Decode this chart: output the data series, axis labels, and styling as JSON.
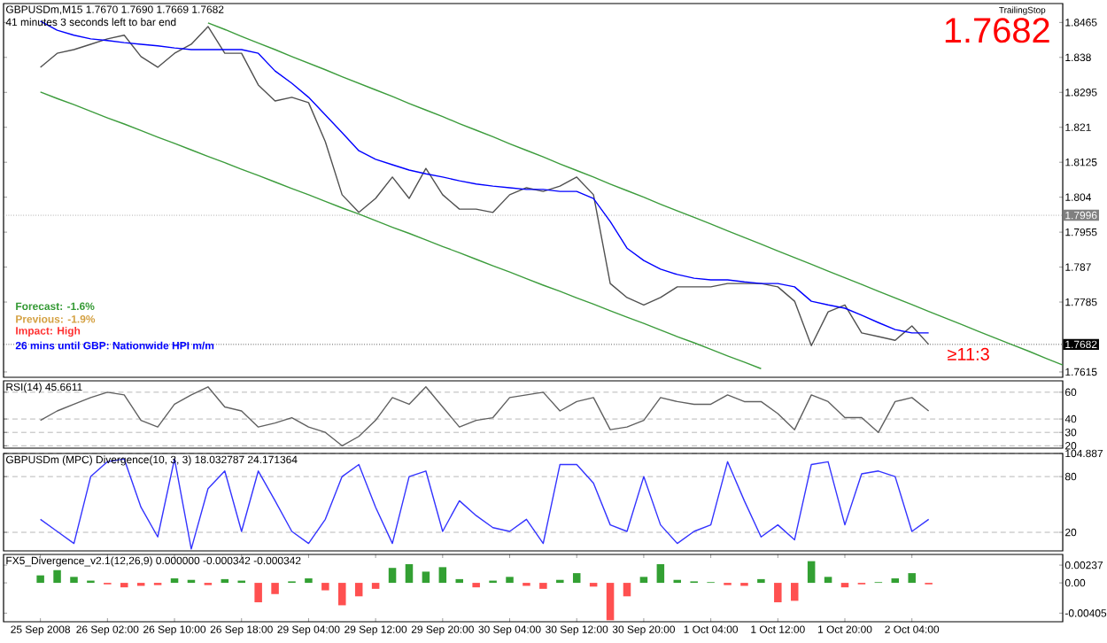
{
  "chart_data": [
    {
      "type": "line",
      "title": "GBPUSDm,M15  1.7670 1.7690 1.7669 1.7682",
      "subtitle": "41 minutes 3 seconds left to bar end",
      "annotations": [
        "TrailingStop",
        "1.7682",
        "Forecast: -1.6%",
        "Previous: -1.9%",
        "Impact: High",
        "26 mins until GBP: Nationwide HPI m/m",
        "≥11:3"
      ],
      "categories": [
        null,
        null,
        null,
        null,
        null,
        null,
        null,
        null,
        null,
        null,
        null,
        null,
        null,
        null,
        null,
        null,
        null,
        null,
        null,
        null,
        null,
        null,
        null,
        null,
        null,
        null,
        null,
        null,
        null,
        null,
        null,
        null,
        null,
        null,
        null,
        null,
        null,
        null,
        null,
        null,
        null,
        null,
        null,
        null,
        null,
        null,
        null,
        null,
        null,
        null,
        null,
        null,
        null,
        null,
        null,
        null,
        null,
        null,
        null,
        null,
        null,
        null
      ],
      "tick_labels": "y",
      "ylim": [
        1.7602,
        1.8511
      ],
      "yticks": [
        1.8465,
        1.838,
        1.8295,
        1.821,
        1.8125,
        1.804,
        1.7955,
        1.787,
        1.7785,
        1.7615
      ],
      "ref_lines": [
        {
          "axis": "y",
          "value": 1.7996,
          "label": "1.7996",
          "color": "#808080",
          "line_style": "dotted"
        },
        {
          "axis": "y",
          "value": 1.7682,
          "label": "1.7682",
          "color": "#000000",
          "line_style": "dotted"
        }
      ],
      "series": [
        {
          "color": "#3c9c3c",
          "values": [
            null,
            null,
            null,
            null,
            null,
            null,
            null,
            null,
            null,
            null,
            1.8464,
            1.8448,
            1.8431,
            1.8415,
            1.8399,
            1.8382,
            1.8366,
            1.835,
            1.8333,
            1.8317,
            1.8301,
            1.8285,
            1.8268,
            1.8252,
            1.8236,
            1.8219,
            1.8203,
            1.8187,
            1.817,
            1.8154,
            1.8138,
            1.8121,
            1.8105,
            1.8089,
            1.8072,
            1.8056,
            1.804,
            1.8023,
            1.8007,
            1.7991,
            1.7975,
            1.7958,
            1.7942,
            1.7926,
            1.7909,
            1.7893,
            1.7877,
            1.786,
            1.7844,
            1.7828,
            1.7811,
            1.7795,
            1.7779,
            1.7762,
            1.7746,
            1.773,
            1.7713,
            1.7697,
            1.7681,
            1.7665,
            1.7648,
            1.7632
          ]
        },
        {
          "color": "#3c9c3c",
          "values": [
            1.8296,
            1.828,
            1.8265,
            1.8249,
            1.8233,
            1.8218,
            1.8202,
            1.8186,
            1.8171,
            1.8155,
            1.8139,
            1.8124,
            1.8108,
            1.8093,
            1.8077,
            1.8061,
            1.8046,
            1.803,
            1.8014,
            1.7999,
            1.7983,
            1.7967,
            1.7952,
            1.7936,
            1.792,
            1.7905,
            1.7889,
            1.7873,
            1.7858,
            1.7842,
            1.7826,
            1.7811,
            1.7795,
            1.778,
            1.7764,
            1.7748,
            1.7733,
            1.7717,
            1.7701,
            1.7686,
            1.767,
            1.7654,
            1.7639,
            1.7623,
            null,
            null,
            null,
            null,
            null,
            null,
            null,
            null,
            null,
            null,
            null,
            null,
            null,
            null,
            null,
            null,
            null,
            null
          ]
        },
        {
          "color": "#505050",
          "values": [
            1.8356,
            1.839,
            1.8399,
            1.8412,
            1.8425,
            1.8434,
            1.8382,
            1.8356,
            1.839,
            1.8412,
            1.8455,
            1.839,
            1.839,
            1.8313,
            1.8274,
            1.8283,
            1.827,
            1.8175,
            1.8046,
            1.8003,
            1.8037,
            1.8089,
            1.8037,
            1.811,
            1.8046,
            1.8011,
            1.8011,
            1.8003,
            1.8046,
            1.8063,
            1.8054,
            1.8067,
            1.8089,
            1.8046,
            1.783,
            1.7796,
            1.7778,
            1.7796,
            1.7822,
            1.7822,
            1.7822,
            1.783,
            1.783,
            1.783,
            1.7822,
            1.7787,
            1.7679,
            1.7761,
            1.7778,
            1.771,
            1.7701,
            1.7692,
            1.7727,
            1.7682,
            null,
            null,
            null,
            null,
            null,
            null,
            null,
            null
          ]
        },
        {
          "color": "#0000ff",
          "values": [
            1.8468,
            1.8446,
            1.8434,
            1.8425,
            1.8421,
            1.8416,
            1.8412,
            1.8408,
            1.8403,
            1.8399,
            1.8399,
            1.8399,
            1.8399,
            1.839,
            1.8347,
            1.8317,
            1.8283,
            1.824,
            1.8197,
            1.8153,
            1.8132,
            1.8119,
            1.8106,
            1.8097,
            1.8089,
            1.808,
            1.8072,
            1.8067,
            1.8063,
            1.8059,
            1.8059,
            1.8054,
            1.8054,
            1.8037,
            1.7981,
            1.7916,
            1.7886,
            1.7865,
            1.7852,
            1.7843,
            1.7839,
            1.7839,
            1.7834,
            1.783,
            1.783,
            1.7822,
            1.7787,
            1.7778,
            1.777,
            1.7753,
            1.7735,
            1.7718,
            1.771,
            1.771,
            null,
            null,
            null,
            null,
            null,
            null,
            null,
            null
          ]
        }
      ]
    },
    {
      "type": "line",
      "title": "RSI(14) 45.6611",
      "categories": [
        null,
        null,
        null,
        null,
        null,
        null,
        null,
        null,
        null,
        null,
        null,
        null,
        null,
        null,
        null,
        null,
        null,
        null,
        null,
        null,
        null,
        null,
        null,
        null,
        null,
        null,
        null,
        null,
        null,
        null,
        null,
        null,
        null,
        null,
        null,
        null,
        null,
        null,
        null,
        null,
        null,
        null,
        null,
        null,
        null,
        null,
        null,
        null,
        null,
        null,
        null,
        null,
        null,
        null,
        null,
        null,
        null,
        null,
        null,
        null,
        null,
        null
      ],
      "tick_labels": "y",
      "grid": "y",
      "ylim": [
        18.227,
        68.5046
      ],
      "yticks": [
        20,
        30,
        40,
        60
      ],
      "series": [
        {
          "color": "#606060",
          "values": [
            39,
            46,
            51,
            56,
            60,
            58,
            39,
            34,
            51,
            58,
            64,
            49,
            46,
            34,
            37,
            41,
            34,
            30,
            20,
            27,
            39,
            56,
            51,
            64,
            49,
            34,
            39,
            41,
            56,
            58,
            60,
            46,
            53,
            56,
            32,
            34,
            39,
            56,
            53,
            51,
            51,
            58,
            53,
            53,
            44,
            32,
            58,
            53,
            41,
            41,
            30,
            53,
            56,
            46,
            null,
            null,
            null,
            null,
            null,
            null,
            null,
            null
          ]
        }
      ]
    },
    {
      "type": "line",
      "title": "GBPUSDm (MPC) Divergence(10, 3, 3) 18.032787 24.171364",
      "categories": [
        null,
        null,
        null,
        null,
        null,
        null,
        null,
        null,
        null,
        null,
        null,
        null,
        null,
        null,
        null,
        null,
        null,
        null,
        null,
        null,
        null,
        null,
        null,
        null,
        null,
        null,
        null,
        null,
        null,
        null,
        null,
        null,
        null,
        null,
        null,
        null,
        null,
        null,
        null,
        null,
        null,
        null,
        null,
        null,
        null,
        null,
        null,
        null,
        null,
        null,
        null,
        null,
        null,
        null,
        null,
        null,
        null,
        null,
        null,
        null,
        null,
        null
      ],
      "tick_labels": "y",
      "grid": "y",
      "ylim": [
        0,
        104.887
      ],
      "yticks": [
        20,
        80,
        104.887
      ],
      "series": [
        {
          "color": "#3333ff",
          "values": [
            34,
            21,
            8,
            80,
            96,
            99,
            47,
            15,
            99,
            2,
            67,
            86,
            21,
            86,
            54,
            21,
            8,
            34,
            80,
            93,
            47,
            8,
            80,
            86,
            21,
            54,
            38,
            25,
            21,
            34,
            8,
            93,
            93,
            73,
            28,
            21,
            80,
            28,
            8,
            21,
            28,
            96,
            54,
            15,
            28,
            12,
            93,
            96,
            28,
            83,
            86,
            80,
            21,
            34,
            null,
            null,
            null,
            null,
            null,
            null,
            null,
            null
          ]
        }
      ]
    },
    {
      "type": "bar",
      "title": "FX5_Divergence_v2.1(12,26,9) 0.000000 -0.000342 -0.000342",
      "categories": [
        "25 Sep 2008",
        null,
        null,
        null,
        "26 Sep 02:00",
        null,
        null,
        null,
        "26 Sep 10:00",
        null,
        null,
        null,
        "26 Sep 18:00",
        null,
        null,
        null,
        "29 Sep 04:00",
        null,
        null,
        null,
        "29 Sep 12:00",
        null,
        null,
        null,
        "29 Sep 20:00",
        null,
        null,
        null,
        "30 Sep 04:00",
        null,
        null,
        null,
        "30 Sep 12:00",
        null,
        null,
        null,
        "30 Sep 20:00",
        null,
        null,
        null,
        "1 Oct 04:00",
        null,
        null,
        null,
        "1 Oct 12:00",
        null,
        null,
        null,
        "1 Oct 20:00",
        null,
        null,
        null,
        "2 Oct 04:00",
        null,
        null,
        null,
        null,
        null,
        null,
        null,
        null,
        null
      ],
      "ylim": [
        -0.0052,
        0.0038
      ],
      "yticks": [
        -0.00405,
        {
          "value": 0,
          "label": "0.00"
        },
        0.00237
      ],
      "values": [
        0.001,
        0.0017,
        0.0008,
        0.0003,
        -0.0002,
        -0.0006,
        -0.0004,
        -0.0003,
        0.0006,
        0.0004,
        -0.0003,
        0.0005,
        0.0003,
        -0.0026,
        -0.0015,
        0.0002,
        0.0006,
        -0.001,
        -0.003,
        -0.0018,
        -0.0008,
        0.002,
        0.0025,
        0.0015,
        0.0021,
        0.0005,
        -0.0006,
        0.0003,
        0.0008,
        -0.0004,
        -0.0008,
        0.0004,
        0.0013,
        -0.0005,
        -0.005,
        -0.0018,
        0.0008,
        0.0025,
        0.0004,
        0.0002,
        0.0001,
        -0.0003,
        -0.0004,
        0.0005,
        -0.0026,
        -0.0024,
        0.0029,
        0.0008,
        -0.0006,
        -0.0002,
        0.0001,
        0.0006,
        0.0013,
        -0.0002,
        null,
        null,
        null,
        null,
        null,
        null,
        null,
        null
      ],
      "colors": [
        "#33a033",
        "#33a033",
        "#33a033",
        "#33a033",
        "#ff5050",
        "#ff5050",
        "#ff5050",
        "#ff5050",
        "#33a033",
        "#33a033",
        "#ff5050",
        "#33a033",
        "#33a033",
        "#ff5050",
        "#ff5050",
        "#33a033",
        "#33a033",
        "#ff5050",
        "#ff5050",
        "#ff5050",
        "#ff5050",
        "#33a033",
        "#33a033",
        "#33a033",
        "#33a033",
        "#33a033",
        "#ff5050",
        "#33a033",
        "#33a033",
        "#ff5050",
        "#ff5050",
        "#33a033",
        "#33a033",
        "#ff5050",
        "#ff5050",
        "#ff5050",
        "#33a033",
        "#33a033",
        "#33a033",
        "#33a033",
        "#33a033",
        "#ff5050",
        "#ff5050",
        "#33a033",
        "#ff5050",
        "#ff5050",
        "#33a033",
        "#33a033",
        "#ff5050",
        "#ff5050",
        "#33a033",
        "#33a033",
        "#33a033",
        "#ff5050",
        null,
        null,
        null,
        null,
        null,
        null,
        null,
        null
      ]
    }
  ]
}
